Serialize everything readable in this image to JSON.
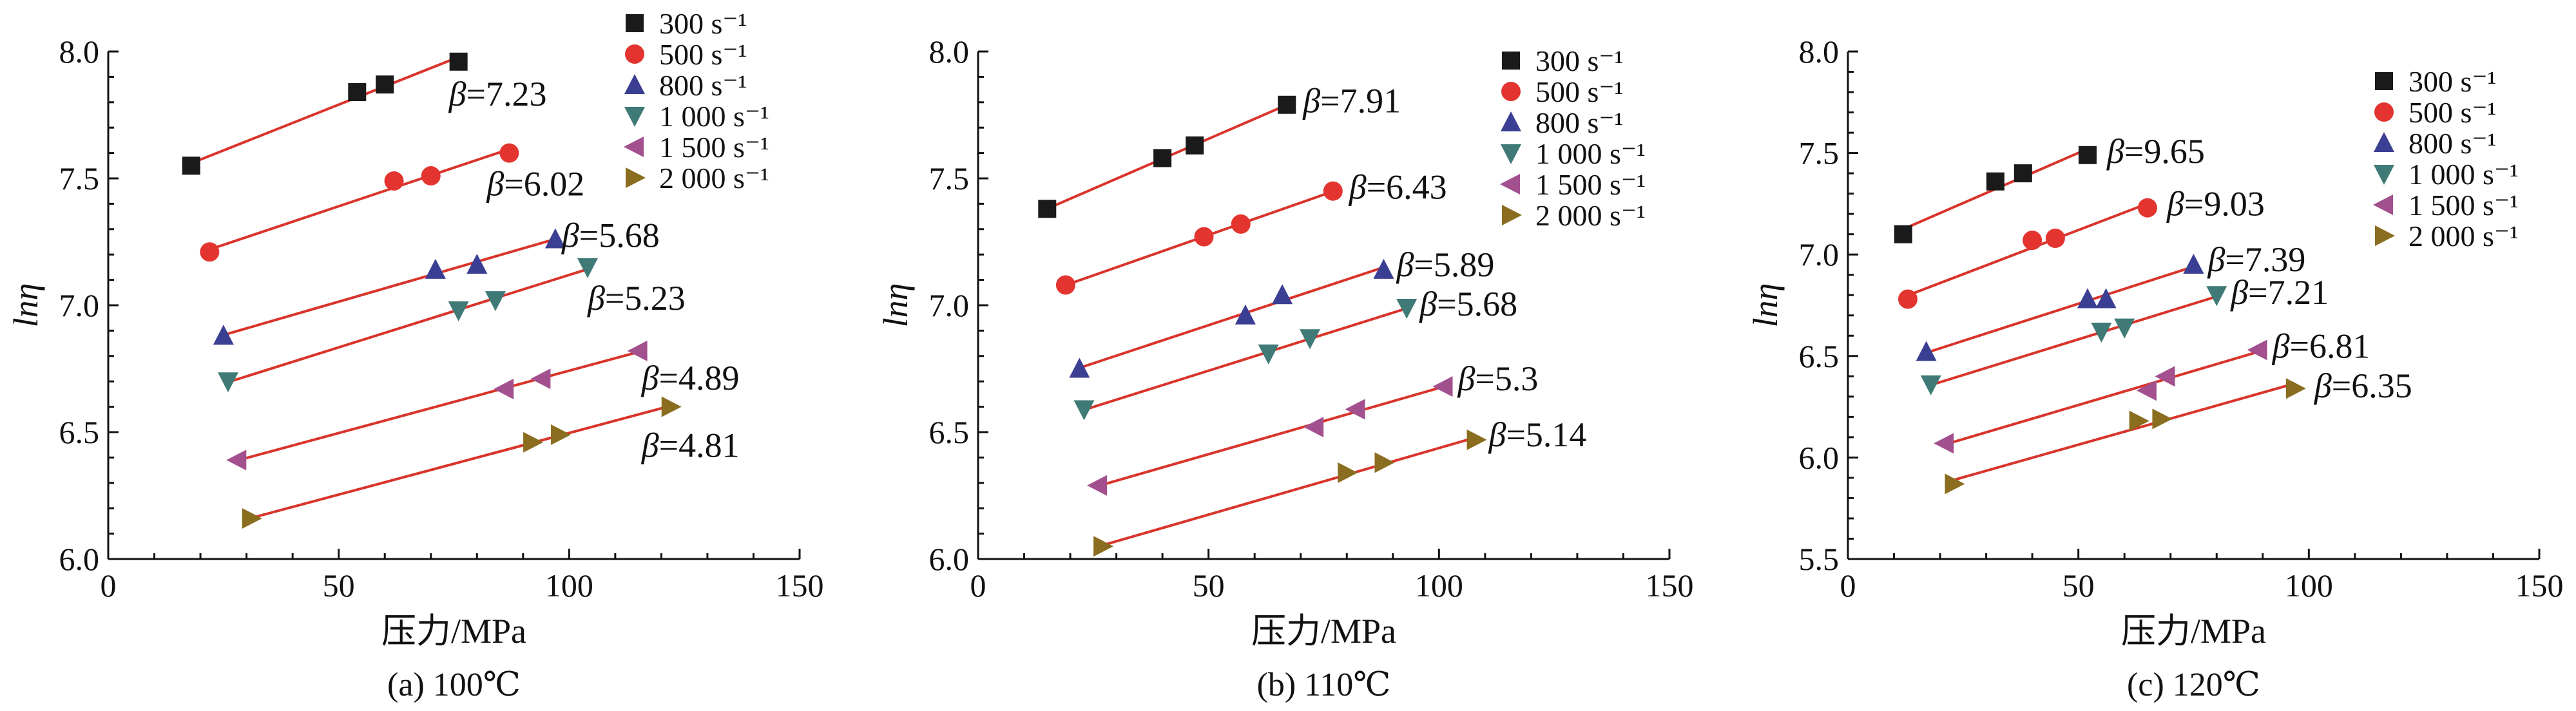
{
  "chart_data": [
    {
      "type": "scatter",
      "title": "",
      "caption": "(a) 100℃",
      "xlabel": "压力/MPa",
      "ylabel": "lnη",
      "xlim": [
        0,
        150
      ],
      "ylim": [
        6.0,
        8.0
      ],
      "xticks": [
        0,
        50,
        100,
        150
      ],
      "yticks": [
        6.0,
        6.5,
        7.0,
        7.5,
        8.0
      ],
      "legend_position": "top-right",
      "series": [
        {
          "name": "300 s⁻¹",
          "marker": "square",
          "color": "#1a1a1a",
          "x": [
            18,
            54,
            60,
            76
          ],
          "y": [
            7.55,
            7.84,
            7.87,
            7.96
          ],
          "beta": "β=7.23"
        },
        {
          "name": "500 s⁻¹",
          "marker": "circle",
          "color": "#e3342f",
          "x": [
            22,
            62,
            70,
            87
          ],
          "y": [
            7.21,
            7.49,
            7.51,
            7.6
          ],
          "beta": "β=6.02"
        },
        {
          "name": "800 s⁻¹",
          "marker": "triangle-up",
          "color": "#3b3f93",
          "x": [
            25,
            71,
            80,
            97
          ],
          "y": [
            6.88,
            7.14,
            7.16,
            7.26
          ],
          "beta": "β=5.68"
        },
        {
          "name": "1 000 s⁻¹",
          "marker": "triangle-down",
          "color": "#3f7a76",
          "x": [
            26,
            76,
            84,
            104
          ],
          "y": [
            6.7,
            6.98,
            7.02,
            7.15
          ],
          "beta": "β=5.23"
        },
        {
          "name": "1 500 s⁻¹",
          "marker": "triangle-left",
          "color": "#a3508f",
          "x": [
            28,
            86,
            94,
            115
          ],
          "y": [
            6.39,
            6.67,
            6.71,
            6.82
          ],
          "beta": "β=4.89"
        },
        {
          "name": "2 000 s⁻¹",
          "marker": "triangle-right",
          "color": "#8a6d1f",
          "x": [
            31,
            92,
            98,
            122
          ],
          "y": [
            6.16,
            6.46,
            6.49,
            6.6
          ],
          "beta": "β=4.81"
        }
      ]
    },
    {
      "type": "scatter",
      "title": "",
      "caption": "(b) 110℃",
      "xlabel": "压力/MPa",
      "ylabel": "lnη",
      "xlim": [
        0,
        150
      ],
      "ylim": [
        6.0,
        8.0
      ],
      "xticks": [
        0,
        50,
        100,
        150
      ],
      "yticks": [
        6.0,
        6.5,
        7.0,
        7.5,
        8.0
      ],
      "legend_position": "top-right",
      "series": [
        {
          "name": "300 s⁻¹",
          "marker": "square",
          "color": "#1a1a1a",
          "x": [
            15,
            40,
            47,
            67
          ],
          "y": [
            7.38,
            7.58,
            7.63,
            7.79
          ],
          "beta": "β=7.91"
        },
        {
          "name": "500 s⁻¹",
          "marker": "circle",
          "color": "#e3342f",
          "x": [
            19,
            49,
            57,
            77
          ],
          "y": [
            7.08,
            7.27,
            7.32,
            7.45
          ],
          "beta": "β=6.43"
        },
        {
          "name": "800 s⁻¹",
          "marker": "triangle-up",
          "color": "#3b3f93",
          "x": [
            22,
            58,
            66,
            88
          ],
          "y": [
            6.75,
            6.96,
            7.04,
            7.14
          ],
          "beta": "β=5.89"
        },
        {
          "name": "1 000 s⁻¹",
          "marker": "triangle-down",
          "color": "#3f7a76",
          "x": [
            23,
            63,
            72,
            93
          ],
          "y": [
            6.59,
            6.81,
            6.87,
            6.99
          ],
          "beta": "β=5.68"
        },
        {
          "name": "1 500 s⁻¹",
          "marker": "triangle-left",
          "color": "#a3508f",
          "x": [
            26,
            73,
            82,
            101
          ],
          "y": [
            6.29,
            6.52,
            6.59,
            6.68
          ],
          "beta": "β=5.3"
        },
        {
          "name": "2 000 s⁻¹",
          "marker": "triangle-right",
          "color": "#8a6d1f",
          "x": [
            27,
            80,
            88,
            108
          ],
          "y": [
            6.05,
            6.34,
            6.38,
            6.47
          ],
          "beta": "β=5.14"
        }
      ]
    },
    {
      "type": "scatter",
      "title": "",
      "caption": "(c) 120℃",
      "xlabel": "压力/MPa",
      "ylabel": "lnη",
      "xlim": [
        0,
        150
      ],
      "ylim": [
        5.5,
        8.0
      ],
      "xticks": [
        0,
        50,
        100,
        150
      ],
      "yticks": [
        5.5,
        6.0,
        6.5,
        7.0,
        7.5,
        8.0
      ],
      "legend_position": "top-right",
      "series": [
        {
          "name": "300 s⁻¹",
          "marker": "square",
          "color": "#1a1a1a",
          "x": [
            12,
            32,
            38,
            52
          ],
          "y": [
            7.1,
            7.36,
            7.4,
            7.49
          ],
          "beta": "β=9.65"
        },
        {
          "name": "500 s⁻¹",
          "marker": "circle",
          "color": "#e3342f",
          "x": [
            13,
            40,
            45,
            65
          ],
          "y": [
            6.78,
            7.07,
            7.08,
            7.23
          ],
          "beta": "β=9.03"
        },
        {
          "name": "800 s⁻¹",
          "marker": "triangle-up",
          "color": "#3b3f93",
          "x": [
            17,
            52,
            56,
            75
          ],
          "y": [
            6.52,
            6.78,
            6.78,
            6.95
          ],
          "beta": "β=7.39"
        },
        {
          "name": "1 000 s⁻¹",
          "marker": "triangle-down",
          "color": "#3f7a76",
          "x": [
            18,
            55,
            60,
            80
          ],
          "y": [
            6.36,
            6.62,
            6.64,
            6.8
          ],
          "beta": "β=7.21"
        },
        {
          "name": "1 500 s⁻¹",
          "marker": "triangle-left",
          "color": "#a3508f",
          "x": [
            21,
            65,
            69,
            89
          ],
          "y": [
            6.07,
            6.33,
            6.4,
            6.53
          ],
          "beta": "β=6.81"
        },
        {
          "name": "2 000 s⁻¹",
          "marker": "triangle-right",
          "color": "#8a6d1f",
          "x": [
            23,
            63,
            68,
            97
          ],
          "y": [
            5.87,
            6.18,
            6.19,
            6.34
          ],
          "beta": "β=6.35"
        }
      ]
    }
  ]
}
